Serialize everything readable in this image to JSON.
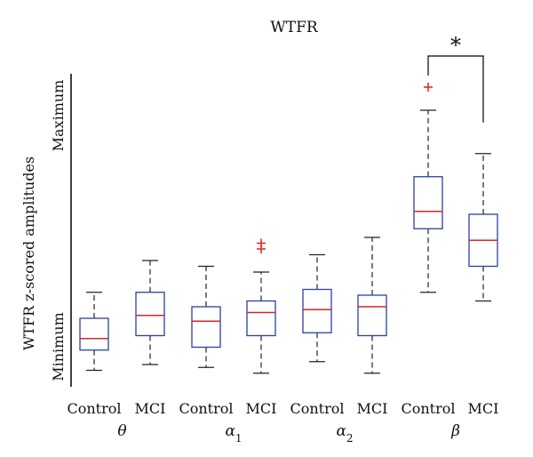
{
  "chart_data": {
    "type": "box",
    "title": "WTFR",
    "ylabel": "WTFR z-scored amplitudes",
    "y_tick_labels": [
      "Minimum",
      "Maximum"
    ],
    "ylim": [
      0,
      100
    ],
    "grid": false,
    "legend": "none",
    "colors": {
      "box": "#2b3fa8",
      "median": "#d62728",
      "outlier": "#e0201b",
      "whisker": "#222222",
      "axis": "#000000"
    },
    "groups": [
      {
        "label": "θ",
        "label_sub": ""
      },
      {
        "label": "α",
        "label_sub": "1"
      },
      {
        "label": "α",
        "label_sub": "2"
      },
      {
        "label": "β",
        "label_sub": ""
      }
    ],
    "boxes": [
      {
        "group": 0,
        "category": "Control",
        "whisker_low": 2,
        "q1": 9,
        "median": 13,
        "q3": 20,
        "whisker_high": 29,
        "outliers": []
      },
      {
        "group": 0,
        "category": "MCI",
        "whisker_low": 4,
        "q1": 14,
        "median": 21,
        "q3": 29,
        "whisker_high": 40,
        "outliers": []
      },
      {
        "group": 1,
        "category": "Control",
        "whisker_low": 3,
        "q1": 10,
        "median": 19,
        "q3": 24,
        "whisker_high": 38,
        "outliers": []
      },
      {
        "group": 1,
        "category": "MCI",
        "whisker_low": 1,
        "q1": 14,
        "median": 22,
        "q3": 26,
        "whisker_high": 36,
        "outliers": [
          44,
          46
        ]
      },
      {
        "group": 2,
        "category": "Control",
        "whisker_low": 5,
        "q1": 15,
        "median": 23,
        "q3": 30,
        "whisker_high": 42,
        "outliers": []
      },
      {
        "group": 2,
        "category": "MCI",
        "whisker_low": 1,
        "q1": 14,
        "median": 24,
        "q3": 28,
        "whisker_high": 48,
        "outliers": []
      },
      {
        "group": 3,
        "category": "Control",
        "whisker_low": 29,
        "q1": 51,
        "median": 57,
        "q3": 69,
        "whisker_high": 92,
        "outliers": [
          100
        ]
      },
      {
        "group": 3,
        "category": "MCI",
        "whisker_low": 26,
        "q1": 38,
        "median": 47,
        "q3": 56,
        "whisker_high": 77,
        "outliers": []
      }
    ],
    "annotations": [
      {
        "type": "significance_bracket",
        "text": "*",
        "between": [
          6,
          7
        ]
      }
    ]
  }
}
